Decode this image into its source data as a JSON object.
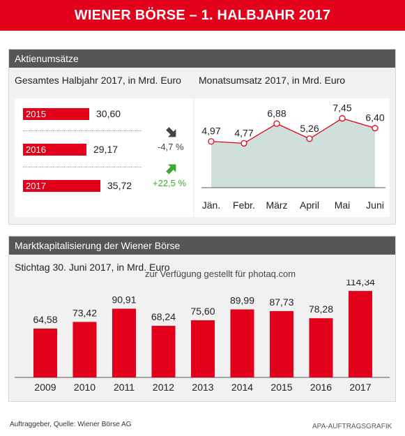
{
  "banner": {
    "title": "WIENER BÖRSE – 1. HALBJAHR 2017"
  },
  "section1": {
    "header": "Aktienumsätze",
    "left_subtitle": "Gesamtes Halbjahr 2017, in Mrd. Euro",
    "right_subtitle": "Monatsumsatz 2017, in Mrd. Euro"
  },
  "section2": {
    "header": "Marktkapitalisierung der Wiener  Börse",
    "subtitle": "Stichtag 30. Juni 2017, in Mrd. Euro",
    "watermark": "zur Verfügung gestellt für photaq.com"
  },
  "footer": {
    "left": "Auftraggeber, Quelle: Wiener Börse AG",
    "right": "APA-AUFTRAGSGRAFIK"
  },
  "colors": {
    "accent": "#e2001a",
    "header_gray": "#565656",
    "area_fill": "#cfe0dc",
    "down_arrow": "#444444",
    "up_arrow": "#3aaa35"
  },
  "chart_data": [
    {
      "type": "bar",
      "orientation": "horizontal",
      "categories": [
        "2015",
        "2016",
        "2017"
      ],
      "values": [
        30.6,
        29.17,
        35.72
      ],
      "value_labels": [
        "30,60",
        "29,17",
        "35,72"
      ],
      "changes": [
        {
          "label": "-4,7 %",
          "direction": "down",
          "icon": "arrow-down-right-icon"
        },
        {
          "label": "+22,5 %",
          "direction": "up",
          "icon": "arrow-up-right-icon"
        }
      ]
    },
    {
      "type": "area",
      "categories": [
        "Jän.",
        "Febr.",
        "März",
        "April",
        "Mai",
        "Juni"
      ],
      "values": [
        4.97,
        4.77,
        6.88,
        5.26,
        7.45,
        6.4
      ],
      "value_labels": [
        "4,97",
        "4,77",
        "6,88",
        "5,26",
        "7,45",
        "6,40"
      ],
      "ylim": [
        0,
        9
      ]
    },
    {
      "type": "bar",
      "categories": [
        "2009",
        "2010",
        "2011",
        "2012",
        "2013",
        "2014",
        "2015",
        "2016",
        "2017"
      ],
      "values": [
        64.58,
        73.42,
        90.91,
        68.24,
        75.6,
        89.99,
        87.73,
        78.28,
        114.34
      ],
      "value_labels": [
        "64,58",
        "73,42",
        "90,91",
        "68,24",
        "75,60",
        "89,99",
        "87,73",
        "78,28",
        "114,34"
      ],
      "ylim": [
        0,
        120
      ]
    }
  ]
}
